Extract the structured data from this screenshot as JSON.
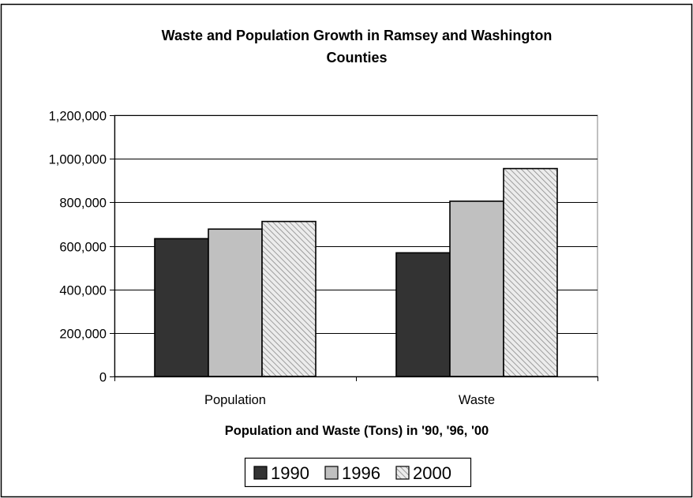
{
  "chart_data": {
    "type": "bar",
    "title": "Waste and Population Growth in Ramsey and Washington Counties",
    "title_lines": [
      "Waste and Population Growth in Ramsey and Washington",
      "Counties"
    ],
    "xlabel": "Population and Waste (Tons) in '90, '96, '00",
    "ylabel": "",
    "categories": [
      "Population",
      "Waste"
    ],
    "series": [
      {
        "name": "1990",
        "values": [
          633000,
          568000
        ],
        "color": "#333333",
        "pattern": "solid"
      },
      {
        "name": "1996",
        "values": [
          677000,
          805000
        ],
        "color": "#c0c0c0",
        "pattern": "solid"
      },
      {
        "name": "2000",
        "values": [
          712000,
          955000
        ],
        "color": "#e4e4e4",
        "pattern": "hatch"
      }
    ],
    "ylim": [
      0,
      1200000
    ],
    "yticks": [
      0,
      200000,
      400000,
      600000,
      800000,
      1000000,
      1200000
    ],
    "ytick_labels": [
      "0",
      "200,000",
      "400,000",
      "600,000",
      "800,000",
      "1,000,000",
      "1,200,000"
    ],
    "grid": true,
    "legend": "bottom"
  }
}
